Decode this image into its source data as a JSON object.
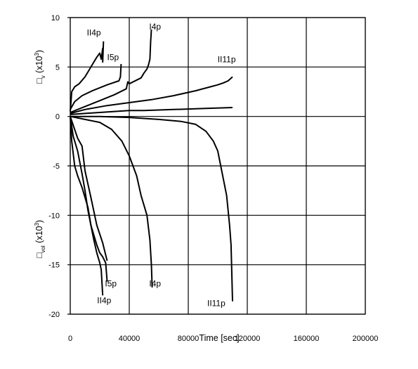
{
  "chart_data": {
    "type": "line",
    "xlabel": "Time [sec]",
    "xlim": [
      0,
      200000
    ],
    "ylim": [
      -20,
      10
    ],
    "x_ticks": [
      "0",
      "40000",
      "80000",
      "120000",
      "160000",
      "200000"
    ],
    "y_ticks": [
      "10",
      "5",
      "0",
      "-5",
      "-10",
      "-15",
      "-20"
    ],
    "ylabel_top": {
      "prefix": "□",
      "sub": "v",
      "main": " (x10",
      "sup": "3",
      "close": ")"
    },
    "ylabel_bottom": {
      "prefix": "□",
      "sub": "vol",
      "main": " (x10",
      "sup": "3",
      "close": ")"
    },
    "grid": true,
    "annotations": [
      {
        "text": "II4p",
        "x": 16000,
        "y": 8.2
      },
      {
        "text": "I4p",
        "x": 57500,
        "y": 8.8
      },
      {
        "text": "I5p",
        "x": 29000,
        "y": 5.7
      },
      {
        "text": "II11p",
        "x": 106000,
        "y": 5.5
      },
      {
        "text": "I5p",
        "x": 27500,
        "y": -17.2
      },
      {
        "text": "II4p",
        "x": 23000,
        "y": -18.9
      },
      {
        "text": "I4p",
        "x": 57500,
        "y": -17.2
      },
      {
        "text": "II11p",
        "x": 99000,
        "y": -19.2
      }
    ],
    "series": [
      {
        "x": [
          0,
          1000,
          3000,
          6000,
          10000,
          14000,
          18000,
          20000,
          21000,
          22000,
          22000,
          22500
        ],
        "y": [
          0.5,
          2.5,
          3.0,
          3.3,
          4.0,
          5.0,
          6.0,
          6.4,
          5.8,
          6.9,
          5.5,
          7.6
        ]
      },
      {
        "x": [
          0,
          3000,
          8000,
          15000,
          25000,
          33000,
          34000,
          34500
        ],
        "y": [
          0.7,
          1.5,
          2.1,
          2.6,
          3.2,
          3.6,
          4.0,
          5.3
        ]
      },
      {
        "x": [
          0,
          10000,
          20000,
          30000,
          38000,
          39000,
          40000,
          48000,
          50000,
          52000,
          53000,
          54000,
          54500,
          55000
        ],
        "y": [
          0.4,
          1.0,
          1.6,
          2.2,
          2.8,
          3.5,
          3.3,
          3.9,
          4.4,
          4.8,
          5.2,
          5.8,
          7.5,
          8.8
        ]
      },
      {
        "x": [
          0,
          10000,
          25000,
          40000,
          55000,
          70000,
          85000,
          95000,
          100000,
          104000,
          107000,
          110000
        ],
        "y": [
          0.3,
          0.7,
          1.1,
          1.4,
          1.7,
          2.1,
          2.6,
          3.0,
          3.2,
          3.4,
          3.6,
          4.0
        ]
      },
      {
        "x": [
          0,
          10000,
          20000,
          30000,
          40000,
          50000,
          70000,
          90000,
          110000
        ],
        "y": [
          0.2,
          0.3,
          0.4,
          0.5,
          0.6,
          0.6,
          0.7,
          0.8,
          0.9
        ]
      },
      {
        "x": [
          0,
          1000,
          3000,
          5000,
          8000,
          12000,
          14000,
          16000,
          18000,
          20000,
          21000,
          22000
        ],
        "y": [
          0.0,
          -2.5,
          -5.0,
          -6.0,
          -7.2,
          -9.2,
          -11.0,
          -12.5,
          -13.8,
          -14.8,
          -15.5,
          -18.1
        ]
      },
      {
        "x": [
          0,
          2000,
          5000,
          8000,
          10000,
          12000,
          14000,
          16000,
          18000,
          20000,
          22000,
          24000,
          25000
        ],
        "y": [
          0.0,
          -2.0,
          -3.5,
          -5.8,
          -7.5,
          -9.5,
          -11.0,
          -12.0,
          -13.0,
          -13.8,
          -14.2,
          -14.8,
          -16.7
        ]
      },
      {
        "x": [
          0,
          5000,
          8000,
          10000,
          14000,
          18000,
          22000,
          24000,
          25000
        ],
        "y": [
          0.0,
          -2.2,
          -3.0,
          -5.5,
          -8.2,
          -11.0,
          -12.8,
          -14.0,
          -14.6
        ]
      },
      {
        "x": [
          0,
          10000,
          20000,
          28000,
          35000,
          40000,
          45000,
          48000,
          52000,
          54000,
          55000,
          55500
        ],
        "y": [
          0.0,
          -0.3,
          -0.6,
          -1.3,
          -2.5,
          -4.0,
          -6.0,
          -8.0,
          -10.0,
          -12.5,
          -15.0,
          -17.3
        ]
      },
      {
        "x": [
          0,
          20000,
          40000,
          60000,
          75000,
          85000,
          92000,
          97000,
          100000,
          102000,
          104000,
          106000,
          107000,
          108000,
          109000,
          110000
        ],
        "y": [
          0.0,
          0.0,
          -0.1,
          -0.3,
          -0.5,
          -0.8,
          -1.5,
          -2.5,
          -3.5,
          -5.0,
          -6.5,
          -8.0,
          -9.5,
          -11.0,
          -13.0,
          -18.7
        ]
      }
    ]
  }
}
